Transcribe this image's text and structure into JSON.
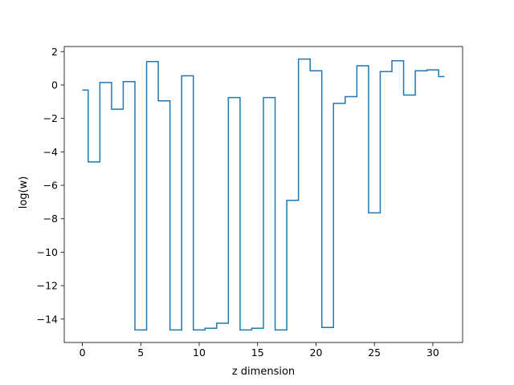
{
  "chart_data": {
    "type": "line",
    "drawstyle": "steps-mid",
    "title": "",
    "xlabel": "z dimension",
    "ylabel": "log(w)",
    "xlim": [
      -1.55,
      32.55
    ],
    "ylim": [
      -15.4,
      2.3
    ],
    "xticks": [
      0,
      5,
      10,
      15,
      20,
      25,
      30
    ],
    "yticks": [
      2,
      0,
      -2,
      -4,
      -6,
      -8,
      -10,
      -12,
      -14
    ],
    "color": "#1f77b4",
    "grid": false,
    "series": [
      {
        "x": [
          0,
          1,
          2,
          3,
          4,
          5,
          6,
          7,
          8,
          9,
          10,
          11,
          12,
          13,
          14,
          15,
          16,
          17,
          18,
          19,
          20,
          21,
          22,
          23,
          24,
          25,
          26,
          27,
          28,
          29,
          30,
          31
        ],
        "values": [
          -0.3,
          -4.6,
          0.15,
          -1.45,
          0.2,
          -14.65,
          1.4,
          -0.95,
          -14.65,
          0.55,
          -14.65,
          -14.55,
          -14.25,
          -0.75,
          -14.65,
          -14.55,
          -0.75,
          -14.65,
          -6.9,
          1.55,
          0.85,
          -14.5,
          -1.1,
          -0.7,
          1.15,
          -7.65,
          0.8,
          1.45,
          -0.6,
          0.85,
          0.9,
          0.5
        ]
      }
    ]
  }
}
